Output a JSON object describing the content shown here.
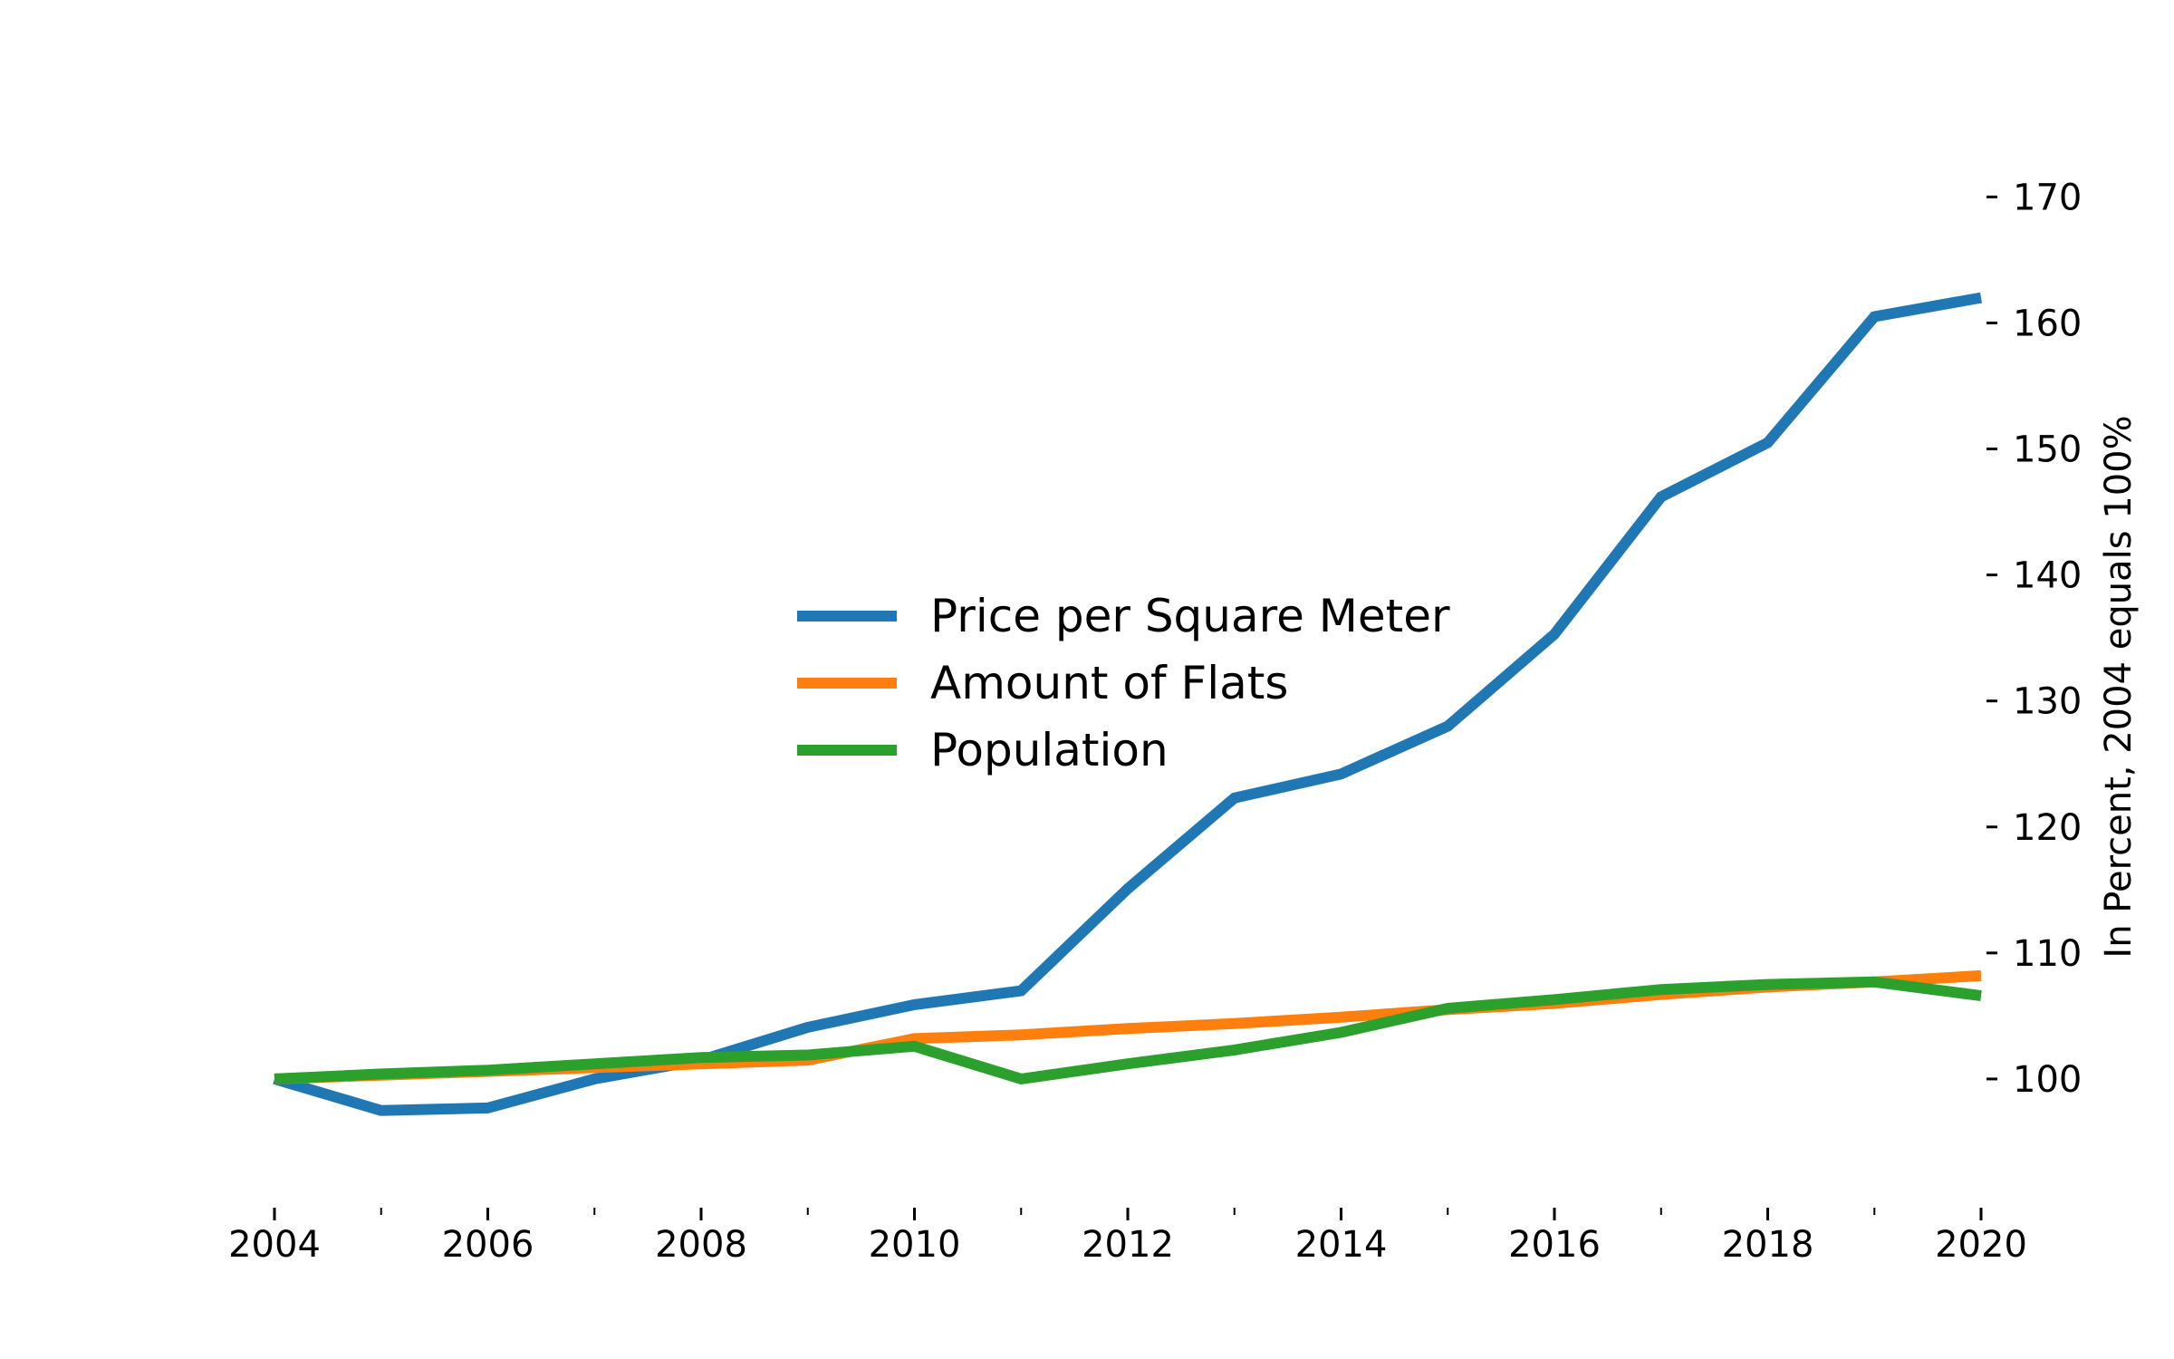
{
  "chart_data": {
    "type": "line",
    "title": "",
    "xlabel": "",
    "ylabel": "In Percent, 2004 equals 100%",
    "x": [
      2004,
      2005,
      2006,
      2007,
      2008,
      2009,
      2010,
      2011,
      2012,
      2013,
      2014,
      2015,
      2016,
      2017,
      2018,
      2019,
      2020
    ],
    "xlim": [
      2004,
      2020
    ],
    "ylim": [
      90,
      177
    ],
    "x_major_ticks": [
      2004,
      2006,
      2008,
      2010,
      2012,
      2014,
      2016,
      2018,
      2020
    ],
    "x_minor_ticks": [
      2005,
      2007,
      2009,
      2011,
      2013,
      2015,
      2017,
      2019
    ],
    "y_ticks": [
      100,
      110,
      120,
      130,
      140,
      150,
      160,
      170
    ],
    "y_axis_position": "right",
    "grid": false,
    "legend_position": "center",
    "series": [
      {
        "name": "Price per Square Meter",
        "color": "#1f77b4",
        "values": [
          100,
          97.5,
          97.7,
          100,
          101.5,
          104.1,
          105.9,
          107,
          115.1,
          122.3,
          124.2,
          128,
          135.3,
          146.2,
          150.5,
          160.5,
          162
        ]
      },
      {
        "name": "Amount of Flats",
        "color": "#ff7f0e",
        "values": [
          100,
          100.3,
          100.6,
          100.9,
          101.2,
          101.5,
          103.2,
          103.5,
          104,
          104.4,
          104.9,
          105.5,
          106,
          106.7,
          107.3,
          107.7,
          108.2
        ]
      },
      {
        "name": "Population",
        "color": "#2ca02c",
        "values": [
          100,
          100.4,
          100.7,
          101.2,
          101.7,
          101.9,
          102.6,
          100,
          101.2,
          102.3,
          103.7,
          105.6,
          106.3,
          107.1,
          107.5,
          107.7,
          106.6
        ]
      }
    ]
  }
}
